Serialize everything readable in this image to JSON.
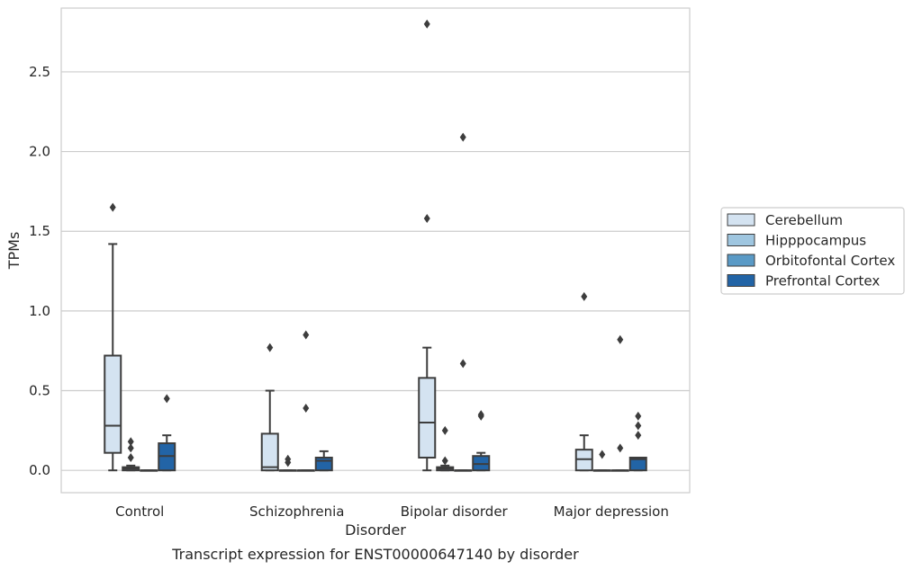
{
  "chart_data": {
    "type": "box",
    "caption": "Transcript expression for ENST00000647140 by disorder",
    "xlabel": "Disorder",
    "ylabel": "TPMs",
    "ylim": [
      -0.14,
      2.9
    ],
    "yticks": [
      "0.0",
      "0.5",
      "1.0",
      "1.5",
      "2.0",
      "2.5"
    ],
    "ytick_values": [
      0.0,
      0.5,
      1.0,
      1.5,
      2.0,
      2.5
    ],
    "grid": true,
    "legend_position": "right",
    "categories": [
      "Control",
      "Schizophrenia",
      "Bipolar disorder",
      "Major depression"
    ],
    "series": [
      {
        "name": "Cerebellum",
        "color": "#d4e3f1",
        "boxes": [
          {
            "whislo": 0.0,
            "q1": 0.11,
            "med": 0.28,
            "q3": 0.72,
            "whishi": 1.42,
            "fliers": [
              1.65
            ]
          },
          {
            "whislo": 0.0,
            "q1": 0.0,
            "med": 0.02,
            "q3": 0.23,
            "whishi": 0.5,
            "fliers": [
              0.77
            ]
          },
          {
            "whislo": 0.0,
            "q1": 0.08,
            "med": 0.3,
            "q3": 0.58,
            "whishi": 0.77,
            "fliers": [
              1.58,
              2.8
            ]
          },
          {
            "whislo": 0.0,
            "q1": 0.0,
            "med": 0.07,
            "q3": 0.13,
            "whishi": 0.22,
            "fliers": [
              1.09
            ]
          }
        ]
      },
      {
        "name": "Hipppocampus",
        "color": "#9fc6e0",
        "boxes": [
          {
            "whislo": 0.0,
            "q1": 0.0,
            "med": 0.01,
            "q3": 0.02,
            "whishi": 0.03,
            "fliers": [
              0.08,
              0.14,
              0.18
            ]
          },
          {
            "whislo": 0.0,
            "q1": 0.0,
            "med": 0.0,
            "q3": 0.0,
            "whishi": 0.0,
            "fliers": [
              0.05,
              0.07
            ]
          },
          {
            "whislo": 0.0,
            "q1": 0.0,
            "med": 0.01,
            "q3": 0.02,
            "whishi": 0.03,
            "fliers": [
              0.06,
              0.25
            ]
          },
          {
            "whislo": 0.0,
            "q1": 0.0,
            "med": 0.0,
            "q3": 0.0,
            "whishi": 0.0,
            "fliers": [
              0.1
            ]
          }
        ]
      },
      {
        "name": "Orbitofontal Cortex",
        "color": "#5a9ac6",
        "boxes": [
          {
            "whislo": 0.0,
            "q1": 0.0,
            "med": 0.0,
            "q3": 0.0,
            "whishi": 0.0,
            "fliers": []
          },
          {
            "whislo": 0.0,
            "q1": 0.0,
            "med": 0.0,
            "q3": 0.0,
            "whishi": 0.0,
            "fliers": [
              0.39,
              0.85
            ]
          },
          {
            "whislo": 0.0,
            "q1": 0.0,
            "med": 0.0,
            "q3": 0.0,
            "whishi": 0.0,
            "fliers": [
              0.67,
              2.09
            ]
          },
          {
            "whislo": 0.0,
            "q1": 0.0,
            "med": 0.0,
            "q3": 0.0,
            "whishi": 0.0,
            "fliers": [
              0.14,
              0.82
            ]
          }
        ]
      },
      {
        "name": "Prefrontal Cortex",
        "color": "#2264a6",
        "boxes": [
          {
            "whislo": 0.0,
            "q1": 0.0,
            "med": 0.09,
            "q3": 0.17,
            "whishi": 0.22,
            "fliers": [
              0.45
            ]
          },
          {
            "whislo": 0.0,
            "q1": 0.0,
            "med": 0.06,
            "q3": 0.08,
            "whishi": 0.12,
            "fliers": []
          },
          {
            "whislo": 0.0,
            "q1": 0.0,
            "med": 0.04,
            "q3": 0.09,
            "whishi": 0.11,
            "fliers": [
              0.34,
              0.35
            ]
          },
          {
            "whislo": 0.0,
            "q1": 0.0,
            "med": 0.07,
            "q3": 0.08,
            "whishi": 0.08,
            "fliers": [
              0.22,
              0.28,
              0.34
            ]
          }
        ]
      }
    ]
  }
}
